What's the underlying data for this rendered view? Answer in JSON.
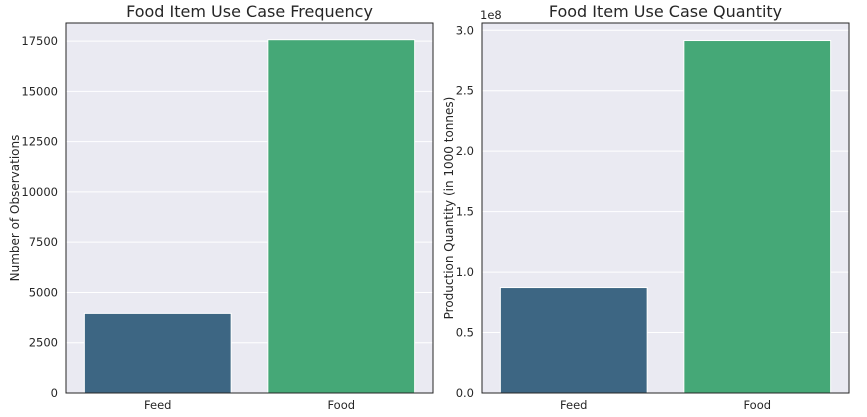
{
  "chart_data": [
    {
      "type": "bar",
      "title": "Food Item Use Case Frequency",
      "xlabel": "",
      "ylabel": "Number of Observations",
      "categories": [
        "Feed",
        "Food"
      ],
      "values": [
        3960,
        17570
      ],
      "ylim": [
        0,
        18400
      ],
      "yticks": [
        0,
        2500,
        5000,
        7500,
        10000,
        12500,
        15000,
        17500
      ],
      "ytick_labels": [
        "0",
        "2500",
        "5000",
        "7500",
        "10000",
        "12500",
        "15000",
        "17500"
      ],
      "offset_label": "",
      "bar_colors": [
        "#3d6683",
        "#45a877"
      ],
      "grid": true
    },
    {
      "type": "bar",
      "title": "Food Item Use Case Quantity",
      "xlabel": "",
      "ylabel": "Production Quantity (in 1000 tonnes)",
      "categories": [
        "Feed",
        "Food"
      ],
      "values": [
        87200000,
        291500000
      ],
      "ylim": [
        0,
        306000000
      ],
      "yticks": [
        0,
        50000000,
        100000000,
        150000000,
        200000000,
        250000000,
        300000000
      ],
      "ytick_labels": [
        "0.0",
        "0.5",
        "1.0",
        "1.5",
        "2.0",
        "2.5",
        "3.0"
      ],
      "offset_label": "1e8",
      "bar_colors": [
        "#3d6683",
        "#45a877"
      ],
      "grid": true
    }
  ],
  "style": {
    "plot_background": "#eaeaf2",
    "grid_color": "#ffffff",
    "axes_edge": "#262626"
  }
}
